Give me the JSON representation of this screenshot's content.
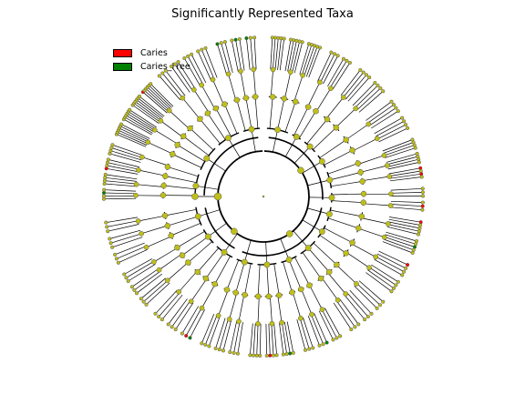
{
  "title": "Significantly Represented Taxa",
  "legend": [
    {
      "label": "Caries",
      "color": "#ff0000"
    },
    {
      "label": "Caries_Free",
      "color": "#008000"
    }
  ],
  "colors": {
    "node_fill": "#bfbf19",
    "node_stroke": "#555555",
    "edge": "#000000",
    "background": "#ffffff"
  }
}
